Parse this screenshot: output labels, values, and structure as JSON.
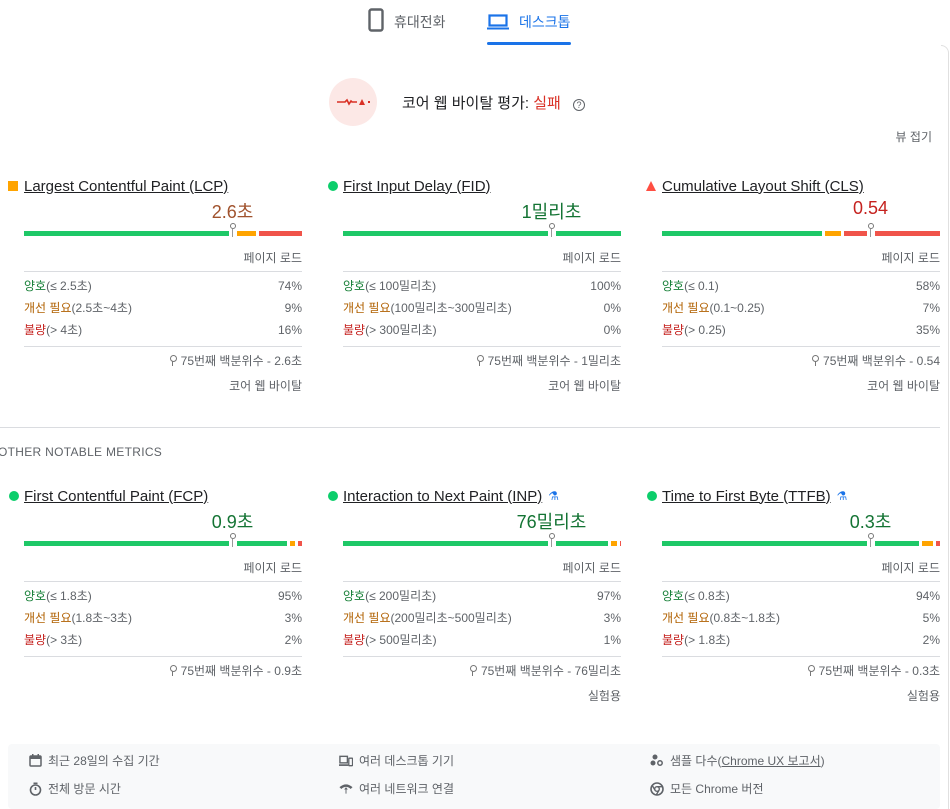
{
  "tabs": [
    {
      "label": "휴대전화",
      "icon": "phone-icon",
      "active": false
    },
    {
      "label": "데스크톱",
      "icon": "laptop-icon",
      "active": true
    }
  ],
  "assessment": {
    "label": "코어 웹 바이탈 평가: ",
    "result": "실패",
    "result_color": "#d93025",
    "help_icon": "help-circle-icon"
  },
  "collapse_label": "뷰 접기",
  "labels": {
    "page_load": "페이지 로드",
    "good": "양호",
    "needs_improvement": "개선 필요",
    "poor": "불량",
    "p75_prefix": "75번째 백분위수 - ",
    "core_web_vitals": "코어 웹 바이탈",
    "experimental": "실험용"
  },
  "core_metrics": [
    {
      "name": "Largest Contentful Paint (LCP)",
      "indicator": "square",
      "status": "needs-improvement",
      "value": "2.6초",
      "value_color": "#a0522d",
      "bar": {
        "good": 74,
        "ni": 9,
        "poor": 16,
        "marker": 75
      },
      "good_range": "(≤ 2.5초)",
      "ni_range": "(2.5초~4초)",
      "poor_range": "(> 4초)",
      "good_pct": "74%",
      "ni_pct": "9%",
      "poor_pct": "16%",
      "p75": "2.6초",
      "footer": "코어 웹 바이탈"
    },
    {
      "name": "First Input Delay (FID)",
      "indicator": "circle",
      "status": "good",
      "value": "1밀리초",
      "value_color": "#137333",
      "bar": {
        "good": 100,
        "ni": 0,
        "poor": 0,
        "marker": 75
      },
      "good_range": "(≤ 100밀리초)",
      "ni_range": "(100밀리초~300밀리초)",
      "poor_range": "(> 300밀리초)",
      "good_pct": "100%",
      "ni_pct": "0%",
      "poor_pct": "0%",
      "p75": "1밀리초",
      "footer": "코어 웹 바이탈"
    },
    {
      "name": "Cumulative Layout Shift (CLS)",
      "indicator": "triangle",
      "status": "poor",
      "value": "0.54",
      "value_color": "#c5221f",
      "bar": {
        "good": 58,
        "ni": 7,
        "poor": 35,
        "marker": 75
      },
      "good_range": "(≤ 0.1)",
      "ni_range": "(0.1~0.25)",
      "poor_range": "(> 0.25)",
      "good_pct": "58%",
      "ni_pct": "7%",
      "poor_pct": "35%",
      "p75": "0.54",
      "footer": "코어 웹 바이탈"
    }
  ],
  "other_title": "OTHER NOTABLE METRICS",
  "other_metrics": [
    {
      "name": "First Contentful Paint (FCP)",
      "indicator": "circle",
      "status": "good",
      "experimental": false,
      "value": "0.9초",
      "value_color": "#137333",
      "bar": {
        "good": 95,
        "ni": 3,
        "poor": 2,
        "marker": 75
      },
      "good_range": "(≤ 1.8초)",
      "ni_range": "(1.8초~3초)",
      "poor_range": "(> 3초)",
      "good_pct": "95%",
      "ni_pct": "3%",
      "poor_pct": "2%",
      "p75": "0.9초",
      "footer": ""
    },
    {
      "name": "Interaction to Next Paint (INP)",
      "indicator": "circle",
      "status": "good",
      "experimental": true,
      "value": "76밀리초",
      "value_color": "#137333",
      "bar": {
        "good": 97,
        "ni": 3,
        "poor": 1,
        "marker": 75
      },
      "good_range": "(≤ 200밀리초)",
      "ni_range": "(200밀리초~500밀리초)",
      "poor_range": "(> 500밀리초)",
      "good_pct": "97%",
      "ni_pct": "3%",
      "poor_pct": "1%",
      "p75": "76밀리초",
      "footer": "실험용"
    },
    {
      "name": "Time to First Byte (TTFB)",
      "indicator": "circle",
      "status": "good",
      "experimental": true,
      "value": "0.3초",
      "value_color": "#137333",
      "bar": {
        "good": 94,
        "ni": 5,
        "poor": 2,
        "marker": 75
      },
      "good_range": "(≤ 0.8초)",
      "ni_range": "(0.8초~1.8초)",
      "poor_range": "(> 1.8초)",
      "good_pct": "94%",
      "ni_pct": "5%",
      "poor_pct": "2%",
      "p75": "0.3초",
      "footer": "실험용"
    }
  ],
  "footer": {
    "items": [
      {
        "icon": "calendar-icon",
        "text": "최근 28일의 수집 기간"
      },
      {
        "icon": "stopwatch-icon",
        "text": "전체 방문 시간"
      },
      {
        "icon": "devices-icon",
        "text": "여러 데스크톱 기기"
      },
      {
        "icon": "network-icon",
        "text": "여러 네트워크 연결"
      },
      {
        "icon": "samples-icon",
        "text": "샘플 다수(",
        "link": "Chrome UX 보고서",
        "suffix": ")"
      },
      {
        "icon": "chrome-icon",
        "text": "모든 Chrome 버전"
      }
    ]
  }
}
